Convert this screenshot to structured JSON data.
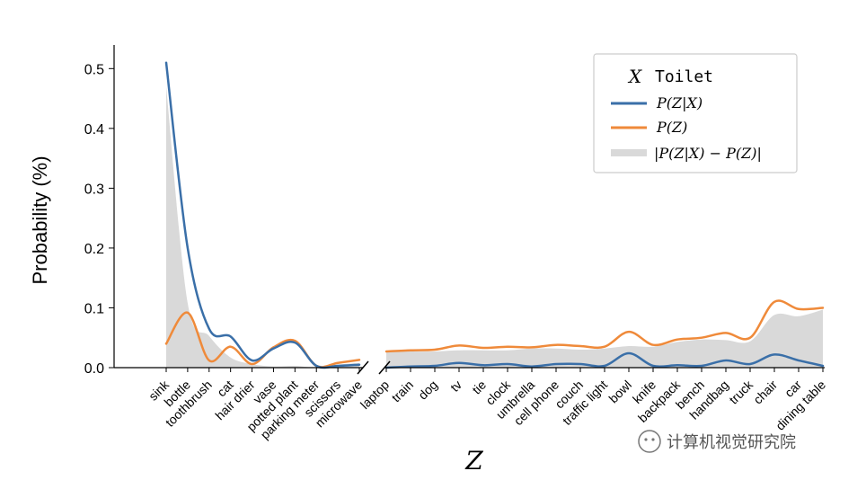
{
  "chart_data": {
    "type": "line",
    "ylabel": "Probability (%)",
    "xlabel": "Z",
    "ylim": [
      0,
      0.52
    ],
    "yticks": [
      "0.0",
      "0.1",
      "0.2",
      "0.3",
      "0.4",
      "0.5"
    ],
    "ytick_values": [
      0,
      0.1,
      0.2,
      0.3,
      0.4,
      0.5
    ],
    "broken_x_axis": true,
    "legend": {
      "title_var": "X",
      "title_value": "Toilet",
      "placement": "top-right",
      "entries": [
        "P(Z|X)",
        "P(Z)",
        "|P(Z|X) − P(Z)|"
      ]
    },
    "segments": [
      {
        "categories": [
          "sink",
          "bottle",
          "toothbrush",
          "cat",
          "hair drier",
          "vase",
          "potted plant",
          "parking meter",
          "scissors",
          "microwave"
        ],
        "series": [
          {
            "name": "P(Z|X)",
            "color": "#3a6fa8",
            "values": [
              0.51,
              0.2,
              0.065,
              0.052,
              0.012,
              0.032,
              0.042,
              0.003,
              0.003,
              0.005
            ]
          },
          {
            "name": "P(Z)",
            "color": "#ef8a3a",
            "values": [
              0.04,
              0.092,
              0.012,
              0.035,
              0.006,
              0.034,
              0.045,
              0.003,
              0.008,
              0.013
            ]
          }
        ]
      },
      {
        "categories": [
          "laptop",
          "train",
          "dog",
          "tv",
          "tie",
          "clock",
          "umbrella",
          "cell phone",
          "couch",
          "traffic light",
          "bowl",
          "knife",
          "backpack",
          "bench",
          "handbag",
          "truck",
          "chair",
          "car",
          "dining table"
        ],
        "series": [
          {
            "name": "P(Z|X)",
            "color": "#3a6fa8",
            "values": [
              0.0,
              0.002,
              0.003,
              0.008,
              0.004,
              0.006,
              0.002,
              0.006,
              0.006,
              0.003,
              0.024,
              0.003,
              0.004,
              0.003,
              0.012,
              0.006,
              0.022,
              0.012,
              0.003
            ]
          },
          {
            "name": "P(Z)",
            "color": "#ef8a3a",
            "values": [
              0.027,
              0.029,
              0.03,
              0.037,
              0.033,
              0.035,
              0.034,
              0.038,
              0.036,
              0.035,
              0.06,
              0.038,
              0.047,
              0.05,
              0.058,
              0.05,
              0.11,
              0.098,
              0.1
            ]
          }
        ]
      }
    ],
    "grid": false
  },
  "watermark": "计算机视觉研究院"
}
